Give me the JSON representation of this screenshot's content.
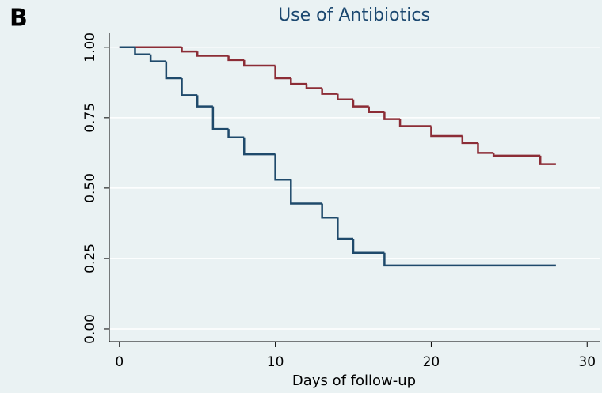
{
  "panel_label": "B",
  "chart_data": {
    "type": "step",
    "title": "Use of Antibiotics",
    "x_label": "Days of follow-up",
    "xlim": [
      -0.65,
      30.8
    ],
    "xticks": [
      0,
      10,
      20,
      30
    ],
    "ylim": [
      -0.045,
      1.05
    ],
    "yticks": [
      {
        "value": 0,
        "label": "0.00"
      },
      {
        "value": 0.25,
        "label": "0.25"
      },
      {
        "value": 0.5,
        "label": "0.50"
      },
      {
        "value": 0.75,
        "label": "0.75"
      },
      {
        "value": 1,
        "label": "1.00"
      }
    ],
    "grid": true,
    "series": [
      {
        "color": "#8c2d36",
        "x": [
          0,
          4,
          5,
          7,
          8,
          10,
          11,
          12,
          13,
          14,
          15,
          16,
          17,
          18,
          20,
          22,
          23,
          24,
          27,
          28
        ],
        "values": [
          1,
          0.985,
          0.97,
          0.955,
          0.935,
          0.89,
          0.87,
          0.855,
          0.835,
          0.815,
          0.79,
          0.77,
          0.745,
          0.72,
          0.685,
          0.66,
          0.625,
          0.615,
          0.585,
          0.585
        ]
      },
      {
        "color": "#1f4a6b",
        "x": [
          0,
          1,
          2,
          3,
          4,
          5,
          6,
          7,
          8,
          10,
          11,
          13,
          14,
          15,
          17,
          28
        ],
        "values": [
          1,
          0.975,
          0.95,
          0.89,
          0.83,
          0.79,
          0.71,
          0.68,
          0.62,
          0.53,
          0.445,
          0.395,
          0.32,
          0.27,
          0.225,
          0.225
        ]
      }
    ]
  }
}
